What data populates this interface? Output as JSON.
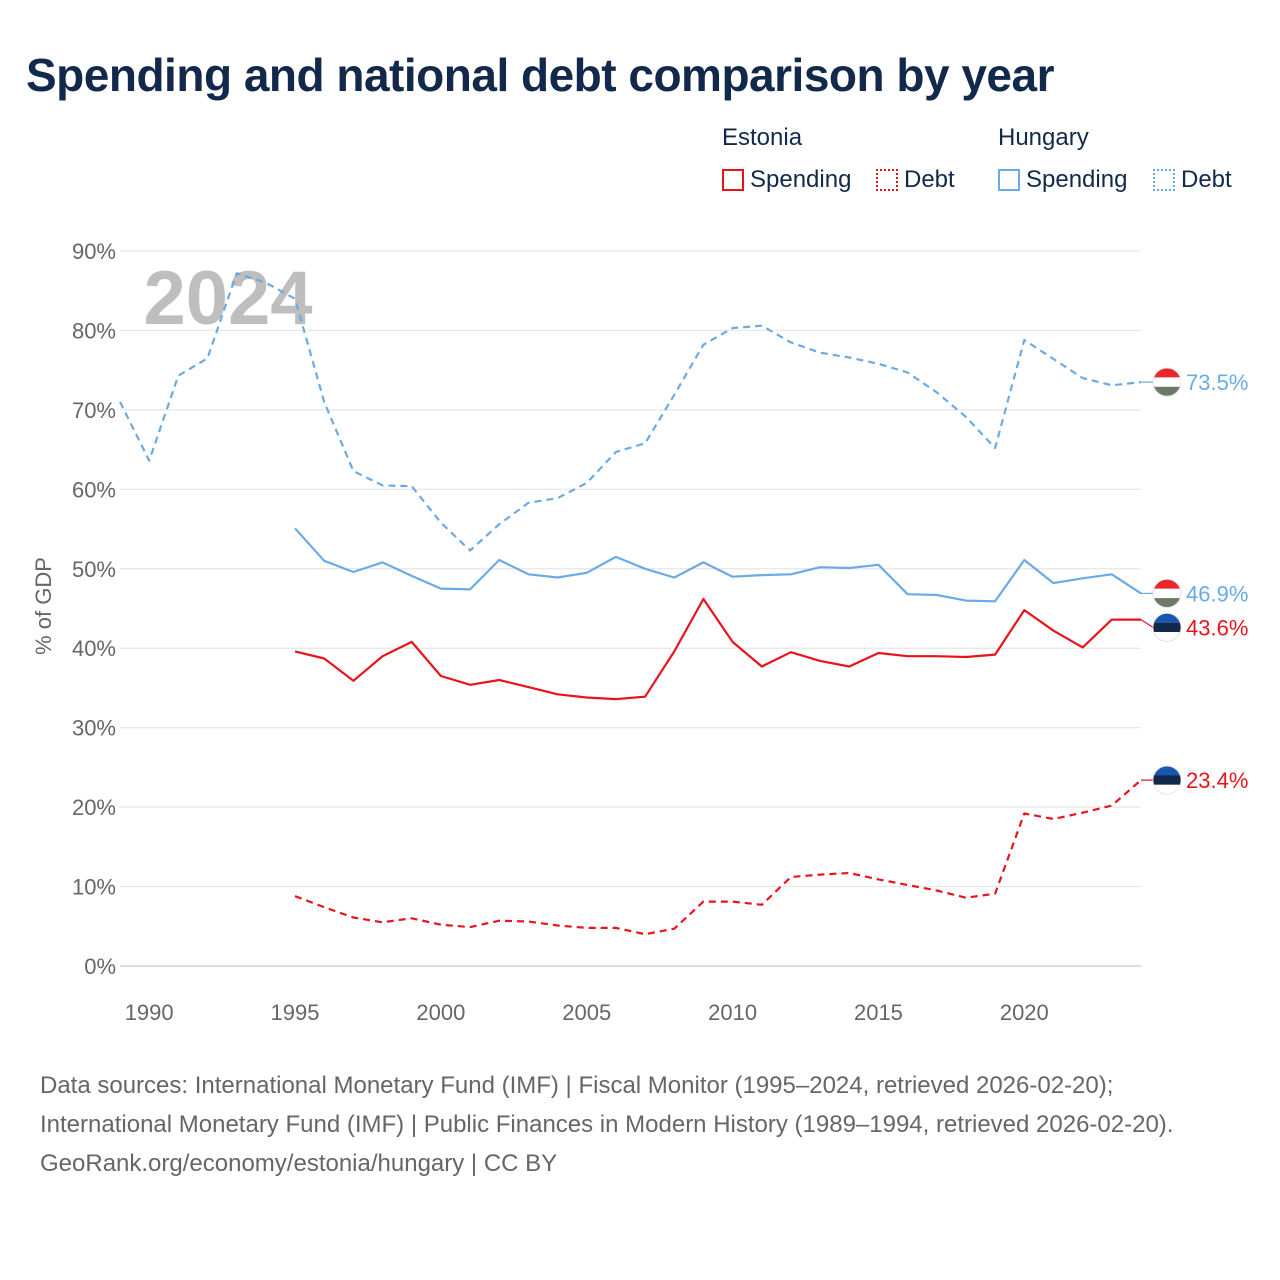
{
  "title": "Spending and national debt comparison by year",
  "legend": {
    "groups": [
      {
        "name": "Estonia",
        "items": [
          {
            "label": "Spending",
            "style": "solid",
            "color": "#e8141c"
          },
          {
            "label": "Debt",
            "style": "dotted",
            "color": "#e8141c"
          }
        ]
      },
      {
        "name": "Hungary",
        "items": [
          {
            "label": "Spending",
            "style": "solid",
            "color": "#6aaae6"
          },
          {
            "label": "Debt",
            "style": "dotted",
            "color": "#6aaae6"
          }
        ]
      }
    ]
  },
  "chart_data": {
    "type": "line",
    "title": "Spending and national debt comparison by year",
    "xlabel": "",
    "ylabel": "% of GDP",
    "xlim": [
      1989,
      2024
    ],
    "ylim": [
      0,
      90
    ],
    "y_ticks": [
      0,
      10,
      20,
      30,
      40,
      50,
      60,
      70,
      80,
      90
    ],
    "y_tick_labels": [
      "0%",
      "10%",
      "20%",
      "30%",
      "40%",
      "50%",
      "60%",
      "70%",
      "80%",
      "90%"
    ],
    "x_ticks": [
      1990,
      1995,
      2000,
      2005,
      2010,
      2015,
      2020
    ],
    "x_tick_labels": [
      "1990",
      "1995",
      "2000",
      "2005",
      "2010",
      "2015",
      "2020"
    ],
    "year_watermark": "2024",
    "grid": true,
    "series": [
      {
        "name": "Hungary Debt",
        "country": "Hungary",
        "metric": "Debt",
        "color": "#6aaae6",
        "style": "dashed",
        "end_label": "73.5%",
        "x": [
          1989,
          1990,
          1991,
          1992,
          1993,
          1994,
          1995,
          1996,
          1997,
          1998,
          1999,
          2000,
          2001,
          2002,
          2003,
          2004,
          2005,
          2006,
          2007,
          2008,
          2009,
          2010,
          2011,
          2012,
          2013,
          2014,
          2015,
          2016,
          2017,
          2018,
          2019,
          2020,
          2021,
          2022,
          2023,
          2024
        ],
        "values": [
          71.0,
          63.6,
          74.3,
          76.5,
          87.2,
          86.0,
          84.0,
          71.0,
          62.3,
          60.5,
          60.4,
          55.8,
          52.3,
          55.6,
          58.3,
          58.9,
          60.8,
          64.7,
          65.8,
          71.9,
          78.2,
          80.3,
          80.6,
          78.5,
          77.2,
          76.6,
          75.8,
          74.7,
          72.2,
          69.1,
          65.2,
          78.8,
          76.4,
          74.0,
          73.1,
          73.5
        ]
      },
      {
        "name": "Hungary Spending",
        "country": "Hungary",
        "metric": "Spending",
        "color": "#6aaae6",
        "style": "solid",
        "end_label": "46.9%",
        "x": [
          1995,
          1996,
          1997,
          1998,
          1999,
          2000,
          2001,
          2002,
          2003,
          2004,
          2005,
          2006,
          2007,
          2008,
          2009,
          2010,
          2011,
          2012,
          2013,
          2014,
          2015,
          2016,
          2017,
          2018,
          2019,
          2020,
          2021,
          2022,
          2023,
          2024
        ],
        "values": [
          55.1,
          51.0,
          49.6,
          50.8,
          49.1,
          47.5,
          47.4,
          51.1,
          49.3,
          48.9,
          49.5,
          51.5,
          50.0,
          48.9,
          50.8,
          49.0,
          49.2,
          49.3,
          50.2,
          50.1,
          50.5,
          46.8,
          46.7,
          46.0,
          45.9,
          51.1,
          48.2,
          48.8,
          49.3,
          46.9
        ]
      },
      {
        "name": "Estonia Spending",
        "country": "Estonia",
        "metric": "Spending",
        "color": "#e8141c",
        "style": "solid",
        "end_label": "43.6%",
        "x": [
          1995,
          1996,
          1997,
          1998,
          1999,
          2000,
          2001,
          2002,
          2003,
          2004,
          2005,
          2006,
          2007,
          2008,
          2009,
          2010,
          2011,
          2012,
          2013,
          2014,
          2015,
          2016,
          2017,
          2018,
          2019,
          2020,
          2021,
          2022,
          2023,
          2024
        ],
        "values": [
          39.6,
          38.7,
          35.9,
          39.0,
          40.8,
          36.5,
          35.4,
          36.0,
          35.1,
          34.2,
          33.8,
          33.6,
          33.9,
          39.6,
          46.2,
          40.8,
          37.7,
          39.5,
          38.4,
          37.7,
          39.4,
          39.0,
          39.0,
          38.9,
          39.2,
          44.8,
          42.2,
          40.1,
          43.6,
          43.6
        ]
      },
      {
        "name": "Estonia Debt",
        "country": "Estonia",
        "metric": "Debt",
        "color": "#e8141c",
        "style": "dashed",
        "end_label": "23.4%",
        "x": [
          1995,
          1996,
          1997,
          1998,
          1999,
          2000,
          2001,
          2002,
          2003,
          2004,
          2005,
          2006,
          2007,
          2008,
          2009,
          2010,
          2011,
          2012,
          2013,
          2014,
          2015,
          2016,
          2017,
          2018,
          2019,
          2020,
          2021,
          2022,
          2023,
          2024
        ],
        "values": [
          8.8,
          7.4,
          6.1,
          5.5,
          6.0,
          5.2,
          4.9,
          5.7,
          5.6,
          5.1,
          4.8,
          4.8,
          4.0,
          4.7,
          8.1,
          8.1,
          7.7,
          11.2,
          11.5,
          11.7,
          10.9,
          10.2,
          9.5,
          8.6,
          9.1,
          19.2,
          18.5,
          19.3,
          20.2,
          23.4
        ]
      }
    ]
  },
  "footer": {
    "sources": "Data sources: International Monetary Fund (IMF) | Fiscal Monitor (1995–2024, retrieved 2026-02-20); International Monetary Fund (IMF) | Public Finances in Modern History (1989–1994, retrieved 2026-02-20).",
    "credit": "GeoRank.org/economy/estonia/hungary | CC BY"
  },
  "flags": {
    "hungary": [
      "#e8262c",
      "#ffffff",
      "#6b7b68"
    ],
    "estonia": [
      "#1a56b0",
      "#13294b",
      "#ffffff"
    ]
  }
}
